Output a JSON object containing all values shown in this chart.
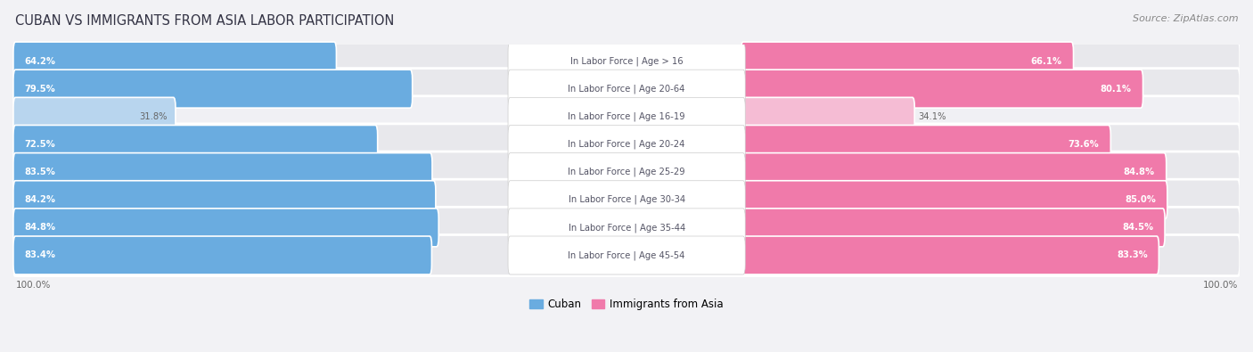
{
  "title": "CUBAN VS IMMIGRANTS FROM ASIA LABOR PARTICIPATION",
  "source": "Source: ZipAtlas.com",
  "categories": [
    "In Labor Force | Age > 16",
    "In Labor Force | Age 20-64",
    "In Labor Force | Age 16-19",
    "In Labor Force | Age 20-24",
    "In Labor Force | Age 25-29",
    "In Labor Force | Age 30-34",
    "In Labor Force | Age 35-44",
    "In Labor Force | Age 45-54"
  ],
  "cuban_values": [
    64.2,
    79.5,
    31.8,
    72.5,
    83.5,
    84.2,
    84.8,
    83.4
  ],
  "asia_values": [
    66.1,
    80.1,
    34.1,
    73.6,
    84.8,
    85.0,
    84.5,
    83.3
  ],
  "cuban_color": "#6aace0",
  "cuban_color_light": "#b8d5ee",
  "asia_color": "#f07aaa",
  "asia_color_light": "#f5bcd4",
  "row_bg_color": "#e8e8ec",
  "row_bg_light": "#f0f0f4",
  "background_color": "#f2f2f5",
  "max_value": 100.0,
  "legend_cuban": "Cuban",
  "legend_asia": "Immigrants from Asia",
  "label_pill_color": "#ffffff",
  "label_text_color": "#555566"
}
